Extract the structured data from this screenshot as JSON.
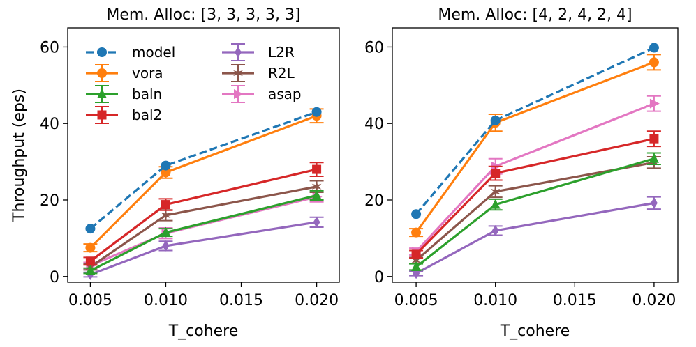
{
  "chart_data": [
    {
      "type": "line",
      "title": "Mem. Alloc: [3, 3, 3, 3, 3]",
      "xlabel": "T_cohere",
      "ylabel": "Throughput (eps)",
      "x": [
        0.005,
        0.01,
        0.02
      ],
      "xlim": [
        0.0035,
        0.0215
      ],
      "ylim": [
        -1.5,
        65
      ],
      "xticks": [
        "0.005",
        "0.010",
        "0.015",
        "0.020"
      ],
      "yticks": [
        "0",
        "20",
        "40",
        "60"
      ],
      "legend": "top-left, 2 columns",
      "series": [
        {
          "name": "model",
          "color": "#1f77b4",
          "marker": "circle",
          "dashed": true,
          "values": [
            12.5,
            29.0,
            43.0
          ],
          "errors": [
            0,
            0,
            0
          ]
        },
        {
          "name": "vora",
          "color": "#ff7f0e",
          "marker": "circle",
          "values": [
            7.5,
            27.2,
            42.0
          ],
          "errors": [
            1.0,
            1.5,
            1.8
          ]
        },
        {
          "name": "baln",
          "color": "#2ca02c",
          "marker": "triangle",
          "values": [
            1.5,
            11.5,
            21.2
          ],
          "errors": [
            0.7,
            1.0,
            1.2
          ]
        },
        {
          "name": "bal2",
          "color": "#d62728",
          "marker": "square",
          "values": [
            4.0,
            18.8,
            28.0
          ],
          "errors": [
            1.0,
            1.5,
            1.8
          ]
        },
        {
          "name": "L2R",
          "color": "#9467bd",
          "marker": "diamond",
          "values": [
            0.5,
            8.0,
            14.2
          ],
          "errors": [
            0.6,
            1.2,
            1.3
          ]
        },
        {
          "name": "R2L",
          "color": "#8c564b",
          "marker": "star",
          "values": [
            2.5,
            16.0,
            23.5
          ],
          "errors": [
            0.8,
            1.4,
            1.5
          ]
        },
        {
          "name": "asap",
          "color": "#e377c2",
          "marker": "triangle-right",
          "values": [
            2.8,
            11.3,
            20.8
          ],
          "errors": [
            0.9,
            1.4,
            1.3
          ]
        }
      ]
    },
    {
      "type": "line",
      "title": "Mem. Alloc: [4, 2, 4, 2, 4]",
      "xlabel": "T_cohere",
      "ylabel": "",
      "x": [
        0.005,
        0.01,
        0.02
      ],
      "xlim": [
        0.0035,
        0.0215
      ],
      "ylim": [
        -1.5,
        65
      ],
      "xticks": [
        "0.005",
        "0.010",
        "0.015",
        "0.020"
      ],
      "yticks": [
        "0",
        "20",
        "40",
        "60"
      ],
      "series": [
        {
          "name": "model",
          "color": "#1f77b4",
          "marker": "circle",
          "dashed": true,
          "values": [
            16.3,
            40.8,
            59.8
          ],
          "errors": [
            0,
            0,
            0
          ]
        },
        {
          "name": "vora",
          "color": "#ff7f0e",
          "marker": "circle",
          "values": [
            11.5,
            40.2,
            56.0
          ],
          "errors": [
            1.0,
            2.2,
            2.0
          ]
        },
        {
          "name": "baln",
          "color": "#2ca02c",
          "marker": "triangle",
          "values": [
            2.5,
            18.8,
            30.8
          ],
          "errors": [
            0.8,
            1.4,
            1.5
          ]
        },
        {
          "name": "bal2",
          "color": "#d62728",
          "marker": "square",
          "values": [
            5.8,
            27.0,
            36.0
          ],
          "errors": [
            1.0,
            1.8,
            2.0
          ]
        },
        {
          "name": "L2R",
          "color": "#9467bd",
          "marker": "diamond",
          "values": [
            0.8,
            12.0,
            19.2
          ],
          "errors": [
            0.6,
            1.2,
            1.6
          ]
        },
        {
          "name": "R2L",
          "color": "#8c564b",
          "marker": "star",
          "values": [
            4.2,
            22.2,
            29.8
          ],
          "errors": [
            0.8,
            1.5,
            1.5
          ]
        },
        {
          "name": "asap",
          "color": "#e377c2",
          "marker": "triangle-right",
          "values": [
            6.5,
            28.8,
            45.2
          ],
          "errors": [
            0.9,
            2.0,
            2.0
          ]
        }
      ]
    }
  ]
}
